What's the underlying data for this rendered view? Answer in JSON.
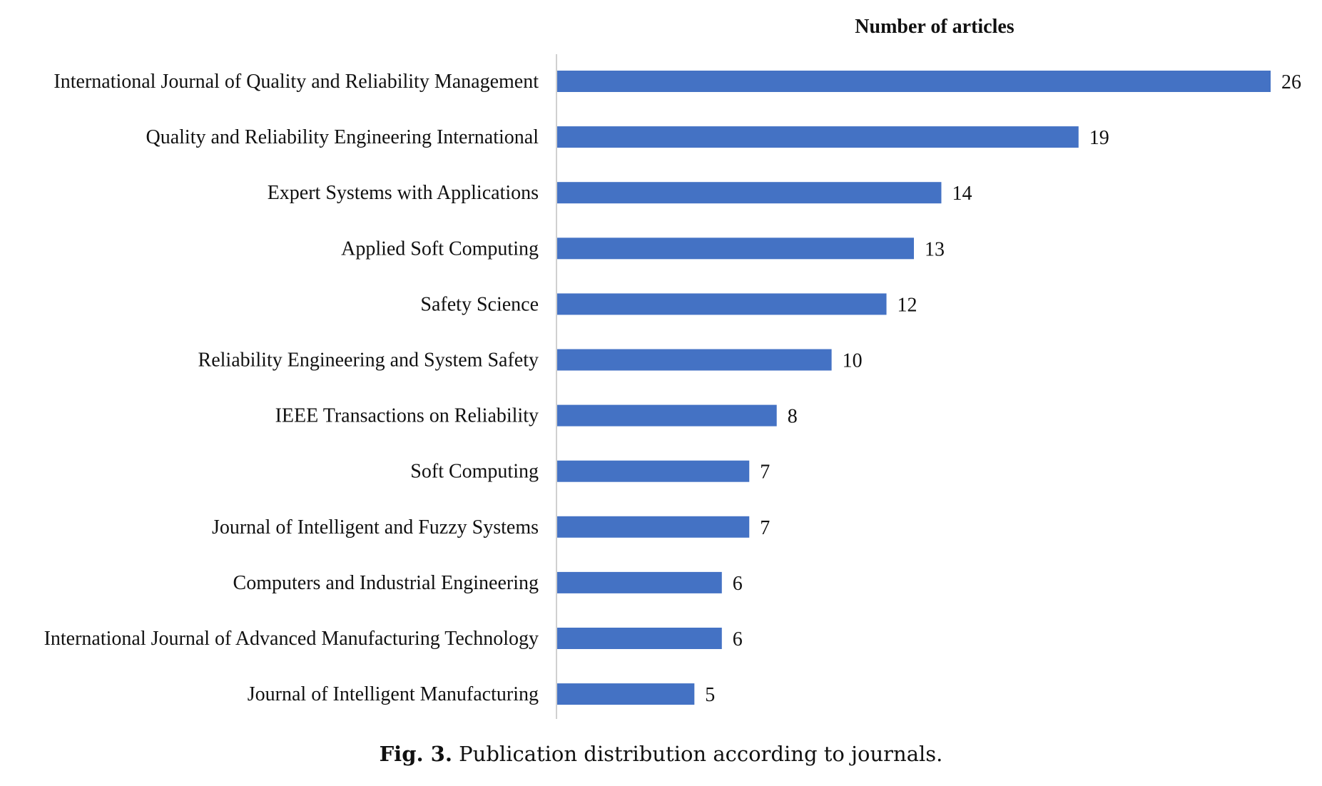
{
  "figure": {
    "caption_label": "Fig. 3.",
    "caption_text": "Publication distribution according to journals."
  },
  "chart_data": {
    "type": "bar",
    "orientation": "horizontal",
    "title": "Number of articles",
    "xlabel": "",
    "ylabel": "",
    "bar_color": "#4472C4",
    "grid": false,
    "xlim": [
      0,
      26
    ],
    "categories": [
      "International Journal of Quality and Reliability Management",
      "Quality and Reliability Engineering International",
      "Expert Systems with Applications",
      "Applied Soft Computing",
      "Safety Science",
      "Reliability Engineering and System Safety",
      "IEEE Transactions on Reliability",
      "Soft Computing",
      "Journal of Intelligent and Fuzzy Systems",
      "Computers and Industrial Engineering",
      "International Journal of Advanced Manufacturing Technology",
      "Journal of Intelligent Manufacturing"
    ],
    "values": [
      26,
      19,
      14,
      13,
      12,
      10,
      8,
      7,
      7,
      6,
      6,
      5
    ]
  }
}
